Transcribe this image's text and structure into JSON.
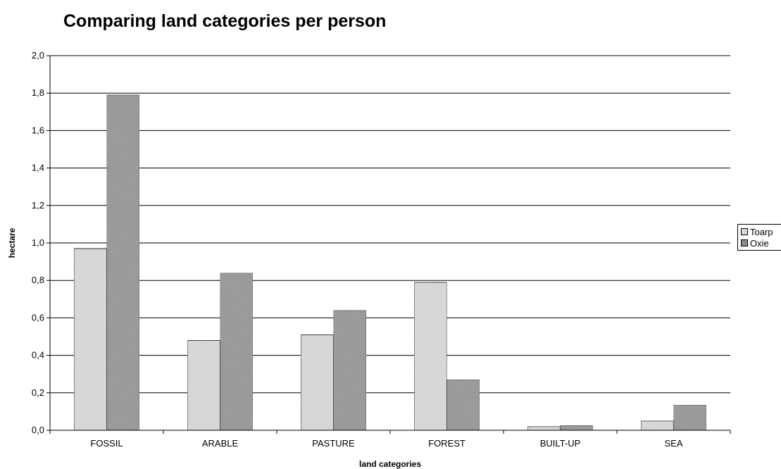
{
  "chart_data": {
    "type": "bar",
    "title": "Comparing land categories per person",
    "xlabel": "land categories",
    "ylabel": "hectare",
    "ylim": [
      0,
      2.0
    ],
    "ytick_step": 0.2,
    "yticks": [
      "0,0",
      "0,2",
      "0,4",
      "0,6",
      "0,8",
      "1,0",
      "1,2",
      "1,4",
      "1,6",
      "1,8",
      "2,0"
    ],
    "grid": true,
    "legend": "right",
    "categories": [
      "FOSSIL",
      "ARABLE",
      "PASTURE",
      "FOREST",
      "BUILT-UP",
      "SEA"
    ],
    "series": [
      {
        "name": "Toarp",
        "values": [
          0.97,
          0.48,
          0.51,
          0.79,
          0.02,
          0.05
        ],
        "color": "#d9d9d9"
      },
      {
        "name": "Oxie",
        "values": [
          1.79,
          0.84,
          0.64,
          0.27,
          0.025,
          0.135
        ],
        "color": "#8c8c8c"
      }
    ]
  }
}
